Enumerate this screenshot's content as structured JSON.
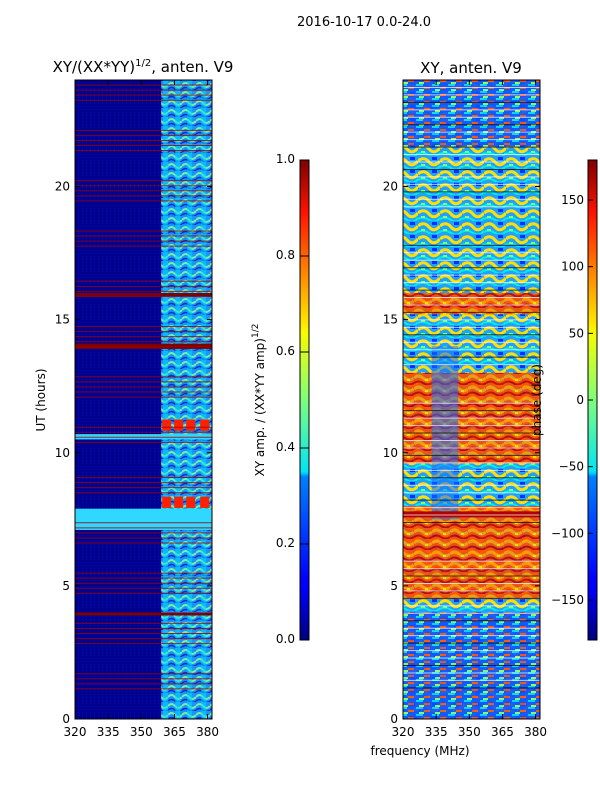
{
  "suptitle": "2016-10-17 0.0-24.0",
  "shared_xlabel": "frequency (MHz)",
  "chart_data": [
    {
      "type": "heatmap",
      "title_prefix": "XY/(XX*YY)",
      "title_sup": "1/2",
      "title_suffix": ", anten. V9",
      "ylabel": "UT (hours)",
      "xlim": [
        320,
        382
      ],
      "ylim": [
        0,
        24
      ],
      "x_ticks": [
        320,
        335,
        350,
        365,
        380
      ],
      "y_ticks": [
        0,
        5,
        10,
        15,
        20
      ],
      "colormap": "jet",
      "colorbar": {
        "label_text": "XY amp. / (XX*YY amp)",
        "label_sup": "1/2",
        "range": [
          0.0,
          1.0
        ],
        "ticks": [
          "0.0",
          "0.2",
          "0.4",
          "0.6",
          "0.8",
          "1.0"
        ]
      },
      "features": {
        "bright_freq_band_mhz": [
          359,
          382
        ],
        "saturated_time_bands_h": [
          [
            3.9,
            4.0
          ],
          [
            13.9,
            14.1
          ],
          [
            15.9,
            16.0
          ]
        ],
        "high_time_bands_h": [
          [
            7.1,
            7.9
          ],
          [
            10.5,
            10.7
          ]
        ]
      }
    },
    {
      "type": "heatmap",
      "title": "XY, anten. V9",
      "xlim": [
        320,
        382
      ],
      "ylim": [
        0,
        24
      ],
      "x_ticks": [
        320,
        335,
        350,
        365,
        380
      ],
      "y_ticks": [
        0,
        5,
        10,
        15,
        20
      ],
      "colormap": "jet",
      "colorbar": {
        "label": "phase (deg)",
        "range": [
          -180,
          180
        ],
        "ticks": [
          "−150",
          "−100",
          "−50",
          "0",
          "50",
          "100",
          "150"
        ]
      }
    }
  ]
}
